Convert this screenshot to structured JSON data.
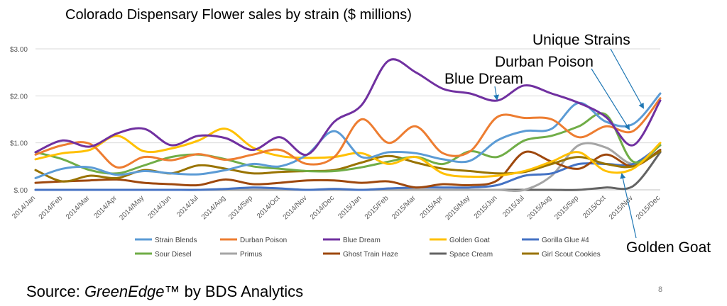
{
  "colors": {
    "grid": "#d9d9d9",
    "axis": "#bfbfbf",
    "annotation_arrow": "#1f77b4"
  },
  "source": {
    "prefix": "Source: ",
    "brand": "GreenEdge™",
    "suffix": " by BDS Analytics"
  },
  "page_number": "8",
  "annotations": [
    "Blue Dream",
    "Durban Poison",
    "Unique Strains",
    "Golden Goat"
  ],
  "chart_data": {
    "type": "line",
    "title": "Colorado Dispensary Flower sales by strain ($ millions)",
    "xlabel": "",
    "ylabel": "",
    "ylim": [
      0,
      3
    ],
    "yticks": [
      0,
      1,
      2,
      3
    ],
    "ytick_labels": [
      "$.00",
      "$1.00",
      "$2.00",
      "$3.00"
    ],
    "grid": true,
    "legend_position": "bottom",
    "categories": [
      "2014/Jan",
      "2014/Feb",
      "2014/Mar",
      "2014/Apr",
      "2014/May",
      "2014/Jun",
      "2014/Jul",
      "2014/Aug",
      "2014/Sep",
      "2014/Oct",
      "2014/Nov",
      "2014/Dec",
      "2015/Jan",
      "2015/Feb",
      "2015/Mar",
      "2015/Apr",
      "2015/May",
      "2015/Jun",
      "2015/Jul",
      "2015/Aug",
      "2015/Sep",
      "2015/Oct",
      "2015/Nov",
      "2015/Dec"
    ],
    "series": [
      {
        "name": "Strain Blends",
        "color": "#5b9bd5",
        "values": [
          0.25,
          0.45,
          0.48,
          0.32,
          0.4,
          0.35,
          0.33,
          0.42,
          0.55,
          0.5,
          0.75,
          1.25,
          0.7,
          0.8,
          0.78,
          0.65,
          0.62,
          1.05,
          1.25,
          1.3,
          1.85,
          1.45,
          1.4,
          2.05
        ]
      },
      {
        "name": "Durban Poison",
        "color": "#ed7d31",
        "values": [
          0.75,
          0.95,
          0.98,
          0.48,
          0.7,
          0.63,
          0.76,
          0.64,
          0.75,
          0.85,
          0.55,
          0.7,
          1.5,
          1.0,
          1.35,
          0.78,
          0.82,
          1.55,
          1.53,
          1.5,
          1.12,
          1.35,
          1.25,
          1.95
        ]
      },
      {
        "name": "Blue Dream",
        "color": "#7030a0",
        "values": [
          0.8,
          1.05,
          0.92,
          1.2,
          1.3,
          0.95,
          1.15,
          1.1,
          0.85,
          1.12,
          0.75,
          1.45,
          1.8,
          2.75,
          2.5,
          2.15,
          2.05,
          1.9,
          2.22,
          2.05,
          1.85,
          1.55,
          0.95,
          1.9
        ]
      },
      {
        "name": "Golden Goat",
        "color": "#ffc000",
        "values": [
          0.65,
          0.78,
          0.85,
          1.15,
          0.82,
          0.88,
          1.05,
          1.3,
          0.9,
          0.72,
          0.68,
          0.7,
          0.78,
          0.55,
          0.7,
          0.35,
          0.28,
          0.3,
          0.4,
          0.6,
          0.8,
          0.4,
          0.45,
          1.0
        ]
      },
      {
        "name": "Gorilla Glue #4",
        "color": "#4472c4",
        "values": [
          0.0,
          0.0,
          0.0,
          0.0,
          0.0,
          0.0,
          0.0,
          0.02,
          0.05,
          0.03,
          0.0,
          0.02,
          0.0,
          0.03,
          0.05,
          0.05,
          0.05,
          0.1,
          0.3,
          0.35,
          0.55,
          0.55,
          0.55,
          0.95
        ]
      },
      {
        "name": "Sour Diesel",
        "color": "#70ad47",
        "values": [
          0.8,
          0.65,
          0.42,
          0.35,
          0.52,
          0.7,
          0.75,
          0.65,
          0.5,
          0.45,
          0.4,
          0.4,
          0.48,
          0.6,
          0.7,
          0.55,
          0.82,
          0.7,
          1.05,
          1.15,
          1.35,
          1.6,
          0.6,
          0.95
        ]
      },
      {
        "name": "Primus",
        "color": "#a5a5a5",
        "values": [
          0.0,
          0.0,
          0.0,
          0.0,
          0.0,
          0.0,
          0.0,
          0.0,
          0.0,
          0.0,
          0.0,
          0.0,
          0.0,
          0.0,
          0.0,
          0.0,
          0.0,
          0.0,
          0.0,
          0.3,
          0.95,
          0.9,
          0.55,
          0.85
        ]
      },
      {
        "name": "Ghost Train Haze",
        "color": "#9e480e",
        "values": [
          0.15,
          0.18,
          0.2,
          0.22,
          0.15,
          0.12,
          0.1,
          0.22,
          0.12,
          0.15,
          0.2,
          0.2,
          0.15,
          0.18,
          0.05,
          0.12,
          0.1,
          0.2,
          0.8,
          0.6,
          0.45,
          0.75,
          0.5,
          0.85
        ]
      },
      {
        "name": "Space Cream",
        "color": "#636363",
        "values": [
          0.0,
          0.0,
          0.0,
          0.0,
          0.0,
          0.0,
          0.0,
          0.0,
          0.0,
          0.0,
          0.0,
          0.0,
          0.0,
          0.0,
          0.0,
          0.0,
          0.0,
          0.0,
          0.0,
          0.0,
          0.0,
          0.05,
          0.08,
          0.8
        ]
      },
      {
        "name": "Girl Scout Cookies",
        "color": "#997300",
        "values": [
          0.42,
          0.18,
          0.3,
          0.25,
          0.42,
          0.35,
          0.52,
          0.45,
          0.35,
          0.38,
          0.4,
          0.42,
          0.58,
          0.72,
          0.58,
          0.45,
          0.4,
          0.35,
          0.38,
          0.55,
          0.7,
          0.55,
          0.5,
          0.82
        ]
      }
    ]
  }
}
